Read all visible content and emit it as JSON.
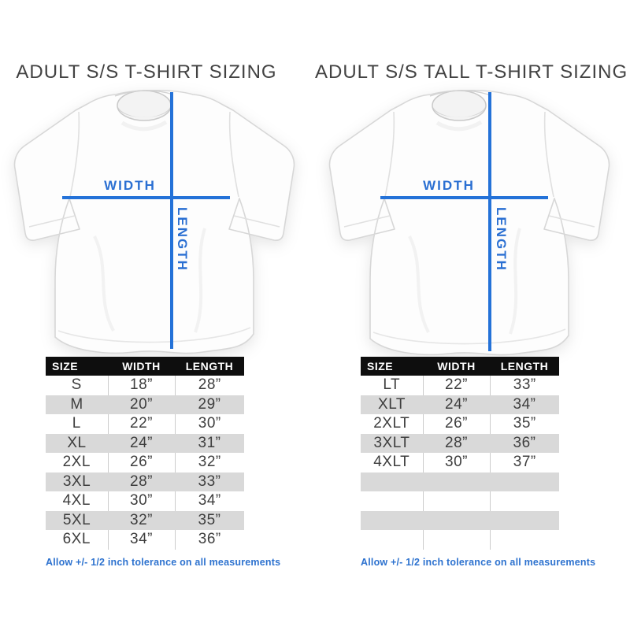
{
  "colors": {
    "measure_line_blue": "#2472d8",
    "measure_text_blue": "#2a6fd2",
    "note_blue": "#2d72cf",
    "table_header_bg": "#0e0e0e",
    "table_header_text": "#ffffff",
    "row_alt_gray": "#d9d9d9",
    "title_gray": "#424242"
  },
  "chart_data": [
    {
      "type": "table",
      "title": "ADULT S/S T-SHIRT SIZING",
      "annotations": {
        "width_label": "WIDTH",
        "length_label": "LENGTH"
      },
      "columns": [
        "SIZE",
        "WIDTH",
        "LENGTH"
      ],
      "rows": [
        [
          "S",
          "18”",
          "28”"
        ],
        [
          "M",
          "20”",
          "29”"
        ],
        [
          "L",
          "22”",
          "30”"
        ],
        [
          "XL",
          "24”",
          "31”"
        ],
        [
          "2XL",
          "26”",
          "32”"
        ],
        [
          "3XL",
          "28”",
          "33”"
        ],
        [
          "4XL",
          "30”",
          "34”"
        ],
        [
          "5XL",
          "32”",
          "35”"
        ],
        [
          "6XL",
          "34”",
          "36”"
        ]
      ],
      "footnote": "Allow +/- 1/2 inch tolerance on all measurements"
    },
    {
      "type": "table",
      "title": "ADULT S/S TALL T-SHIRT SIZING",
      "annotations": {
        "width_label": "WIDTH",
        "length_label": "LENGTH"
      },
      "columns": [
        "SIZE",
        "WIDTH",
        "LENGTH"
      ],
      "rows": [
        [
          "LT",
          "22”",
          "33”"
        ],
        [
          "XLT",
          "24”",
          "34”"
        ],
        [
          "2XLT",
          "26”",
          "35”"
        ],
        [
          "3XLT",
          "28”",
          "36”"
        ],
        [
          "4XLT",
          "30”",
          "37”"
        ],
        [
          "",
          "",
          ""
        ],
        [
          "",
          "",
          ""
        ],
        [
          "",
          "",
          ""
        ],
        [
          "",
          "",
          ""
        ]
      ],
      "footnote": "Allow +/- 1/2 inch tolerance on all measurements"
    }
  ]
}
